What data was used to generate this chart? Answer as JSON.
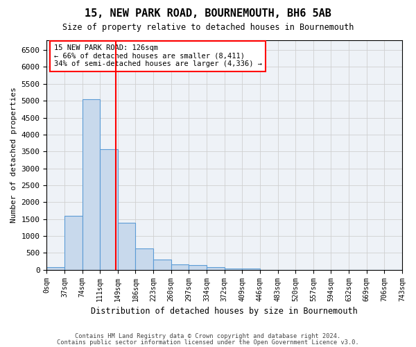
{
  "title": "15, NEW PARK ROAD, BOURNEMOUTH, BH6 5AB",
  "subtitle": "Size of property relative to detached houses in Bournemouth",
  "xlabel": "Distribution of detached houses by size in Bournemouth",
  "ylabel": "Number of detached properties",
  "bar_color": "#c8d9ec",
  "bar_edge_color": "#5b9bd5",
  "bin_labels": [
    "0sqm",
    "37sqm",
    "74sqm",
    "111sqm",
    "149sqm",
    "186sqm",
    "223sqm",
    "260sqm",
    "297sqm",
    "334sqm",
    "372sqm",
    "409sqm",
    "446sqm",
    "483sqm",
    "520sqm",
    "557sqm",
    "594sqm",
    "632sqm",
    "669sqm",
    "706sqm",
    "743sqm"
  ],
  "bar_heights": [
    75,
    1600,
    5050,
    3570,
    1380,
    630,
    300,
    160,
    130,
    80,
    45,
    45,
    0,
    0,
    0,
    0,
    0,
    0,
    0,
    0
  ],
  "red_line_x": 3.405,
  "annotation_line1": "15 NEW PARK ROAD: 126sqm",
  "annotation_line2": "← 66% of detached houses are smaller (8,411)",
  "annotation_line3": "34% of semi-detached houses are larger (4,336) →",
  "ylim": [
    0,
    6800
  ],
  "yticks": [
    0,
    500,
    1000,
    1500,
    2000,
    2500,
    3000,
    3500,
    4000,
    4500,
    5000,
    5500,
    6000,
    6500
  ],
  "footnote1": "Contains HM Land Registry data © Crown copyright and database right 2024.",
  "footnote2": "Contains public sector information licensed under the Open Government Licence v3.0.",
  "grid_color": "#d0d0d0",
  "background_color": "#eef2f7"
}
